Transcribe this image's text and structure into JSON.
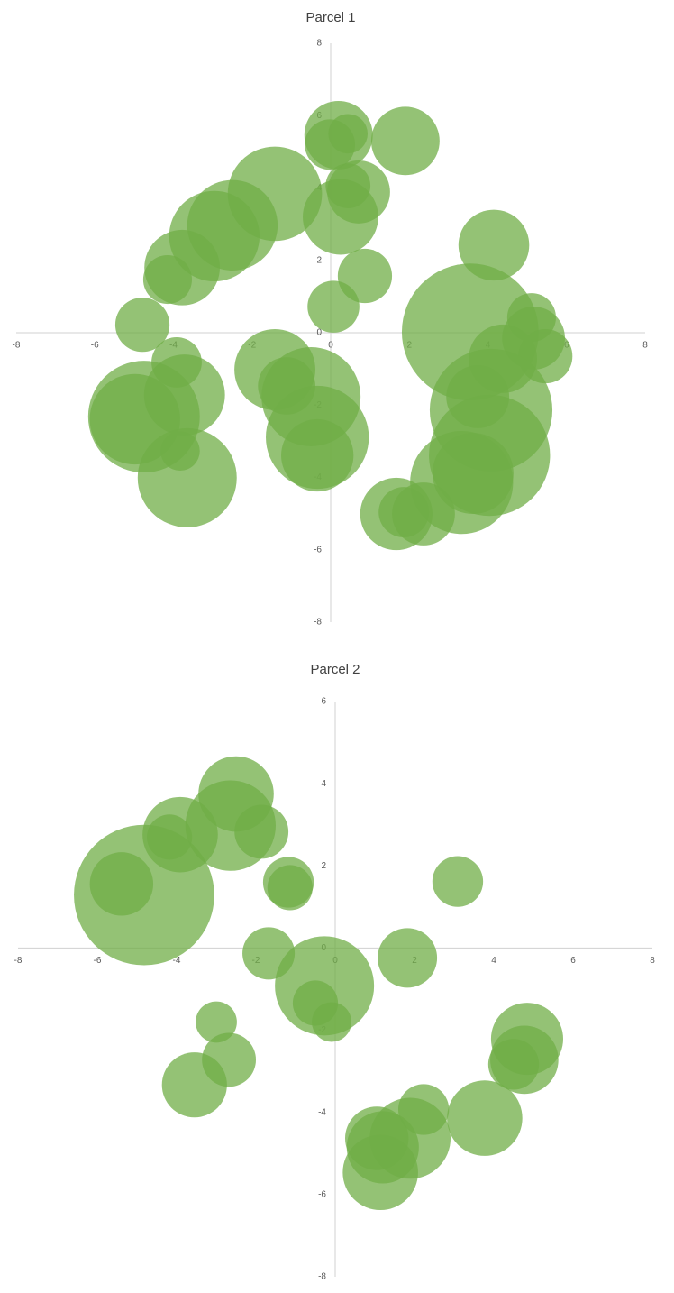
{
  "chart_data": [
    {
      "type": "bubble",
      "title": "Parcel 1",
      "color": "#70ad47",
      "xlim": [
        -8,
        8
      ],
      "ylim": [
        -8,
        8
      ],
      "xticks": [
        -8,
        -6,
        -4,
        -2,
        0,
        2,
        4,
        6,
        8
      ],
      "yticks": [
        -8,
        -6,
        -4,
        -2,
        0,
        2,
        4,
        6,
        8
      ],
      "x": [
        0.2,
        -0.02,
        0.44,
        1.9,
        -1.42,
        0.71,
        0.44,
        0.25,
        -2.5,
        -2.96,
        -3.78,
        -4.15,
        0.87,
        0.07,
        4.15,
        3.55,
        5.11,
        5.16,
        5.46,
        4.38,
        -4.79,
        -3.92,
        -3.72,
        -4.75,
        -4.98,
        -3.83,
        -3.65,
        -1.42,
        -1.12,
        -0.5,
        -0.34,
        -0.34,
        4.08,
        3.74,
        4.04,
        3.33,
        3.62,
        1.67,
        2.36,
        1.86
      ],
      "y": [
        5.46,
        5.2,
        5.5,
        5.3,
        3.84,
        3.89,
        4.06,
        3.2,
        2.97,
        2.67,
        1.8,
        1.47,
        1.57,
        0.72,
        2.42,
        0.02,
        0.42,
        -0.15,
        -0.65,
        -0.72,
        0.22,
        -0.82,
        -1.72,
        -2.32,
        -2.39,
        -3.27,
        -4.01,
        -1.02,
        -1.47,
        -1.77,
        -2.89,
        -3.39,
        -2.14,
        -1.77,
        -3.39,
        -4.14,
        -3.89,
        -5.01,
        -5.01,
        -4.96
      ],
      "sizes": [
        0.87,
        0.64,
        0.5,
        0.87,
        1.2,
        0.8,
        0.57,
        0.96,
        1.15,
        1.15,
        0.96,
        0.62,
        0.69,
        0.66,
        0.9,
        1.74,
        0.62,
        0.8,
        0.69,
        0.87,
        0.69,
        0.64,
        1.03,
        1.42,
        1.15,
        0.5,
        1.26,
        1.03,
        0.73,
        1.26,
        1.31,
        0.92,
        1.56,
        0.8,
        1.54,
        1.31,
        1.03,
        0.92,
        0.8,
        0.64
      ]
    },
    {
      "type": "bubble",
      "title": "Parcel 2",
      "color": "#70ad47",
      "xlim": [
        -8,
        8
      ],
      "ylim": [
        -8,
        6
      ],
      "xticks": [
        -8,
        -6,
        -4,
        -2,
        0,
        2,
        4,
        6,
        8
      ],
      "yticks": [
        -8,
        -6,
        -4,
        -2,
        0,
        2,
        4,
        6
      ],
      "x": [
        -2.5,
        -2.64,
        -1.86,
        -3.91,
        -4.18,
        -4.82,
        -5.39,
        -1.18,
        -1.14,
        3.09,
        -1.68,
        -0.27,
        -0.5,
        -0.09,
        1.82,
        -3.0,
        -2.68,
        -3.55,
        4.84,
        4.77,
        4.5,
        3.77,
        2.23,
        1.89,
        1.2,
        1.14,
        1.05
      ],
      "y": [
        3.75,
        2.98,
        2.83,
        2.76,
        2.7,
        1.29,
        1.56,
        1.6,
        1.47,
        1.62,
        -0.13,
        -0.92,
        -1.34,
        -1.8,
        -0.24,
        -1.8,
        -2.72,
        -3.33,
        -2.21,
        -2.72,
        -2.83,
        -4.14,
        -3.93,
        -4.63,
        -4.85,
        -5.46,
        -4.63
      ],
      "sizes": [
        0.95,
        1.14,
        0.68,
        0.95,
        0.57,
        1.77,
        0.8,
        0.64,
        0.57,
        0.64,
        0.66,
        1.25,
        0.57,
        0.5,
        0.75,
        0.52,
        0.68,
        0.82,
        0.91,
        0.86,
        0.64,
        0.95,
        0.64,
        1.02,
        0.91,
        0.95,
        0.8
      ]
    }
  ]
}
